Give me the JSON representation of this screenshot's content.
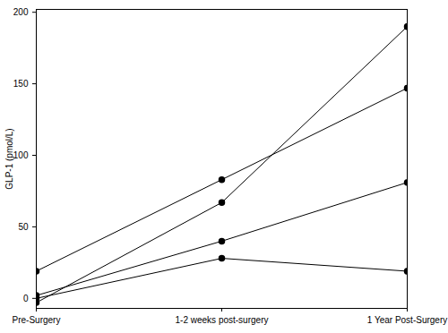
{
  "chart_data": {
    "type": "line",
    "y_label": "GLP-1 (pmol/L)",
    "categories": [
      "Pre-Surgery",
      "1-2 weeks post-surgery",
      "1 Year Post-Surgery"
    ],
    "series": [
      {
        "color": "#000000",
        "marker": "circle",
        "values": [
          19,
          83,
          147
        ]
      },
      {
        "color": "#000000",
        "marker": "circle",
        "values": [
          -3,
          67,
          190
        ]
      },
      {
        "color": "#000000",
        "marker": "circle",
        "values": [
          2,
          40,
          81
        ]
      },
      {
        "color": "#000000",
        "marker": "circle",
        "values": [
          0,
          28,
          19
        ]
      }
    ],
    "ylim": [
      -7,
      202
    ],
    "yticks": [
      0,
      50,
      100,
      150,
      200
    ],
    "grid": false
  }
}
